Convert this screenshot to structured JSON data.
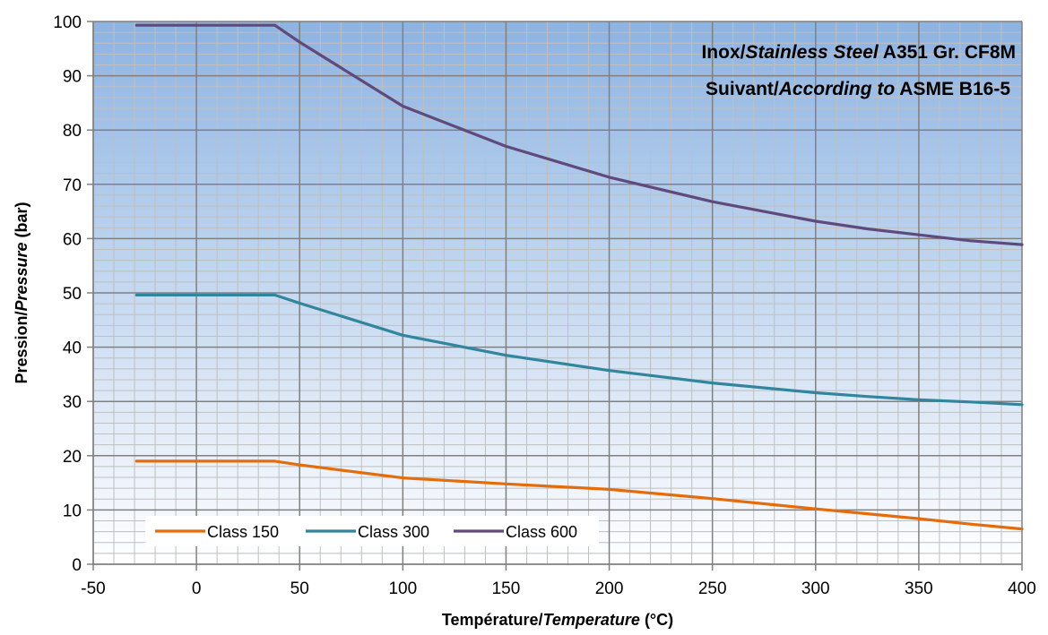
{
  "chart_data": {
    "type": "line",
    "title": {
      "line1": [
        {
          "text": "Inox/",
          "italic": false
        },
        {
          "text": "Stainless Steel",
          "italic": true
        },
        {
          "text": " A351 Gr. CF8M",
          "italic": false
        }
      ],
      "line2": [
        {
          "text": "Suivant/",
          "italic": false
        },
        {
          "text": "According to",
          "italic": true
        },
        {
          "text": " ASME B16-5",
          "italic": false
        }
      ]
    },
    "xlabel": [
      {
        "text": "Température/",
        "italic": false
      },
      {
        "text": "Temperature",
        "italic": true
      },
      {
        "text": " (°C)",
        "italic": false
      }
    ],
    "ylabel": [
      {
        "text": "Pression/",
        "italic": false
      },
      {
        "text": "Pressure",
        "italic": true
      },
      {
        "text": " (bar)",
        "italic": false
      }
    ],
    "xlim": [
      -50,
      400
    ],
    "ylim": [
      0,
      100
    ],
    "x_ticks": [
      "-50",
      "0",
      "50",
      "100",
      "150",
      "200",
      "250",
      "300",
      "350",
      "400"
    ],
    "y_ticks": [
      "0",
      "10",
      "20",
      "30",
      "40",
      "50",
      "60",
      "70",
      "80",
      "90",
      "100"
    ],
    "x_tick_values": [
      -50,
      0,
      50,
      100,
      150,
      200,
      250,
      300,
      350,
      400
    ],
    "y_tick_values": [
      0,
      10,
      20,
      30,
      40,
      50,
      60,
      70,
      80,
      90,
      100
    ],
    "x_minor_step": 10,
    "y_minor_step": 2,
    "grid": true,
    "legend_position": "bottom-left",
    "x": [
      -29,
      38,
      50,
      100,
      150,
      200,
      250,
      300,
      325,
      350,
      375,
      400
    ],
    "series": [
      {
        "name": "Class 150",
        "color": "#E46C0A",
        "values": [
          19.0,
          19.0,
          18.3,
          15.9,
          14.8,
          13.8,
          12.1,
          10.2,
          9.3,
          8.4,
          7.4,
          6.5
        ]
      },
      {
        "name": "Class 300",
        "color": "#31859C",
        "values": [
          49.6,
          49.6,
          48.1,
          42.2,
          38.5,
          35.7,
          33.4,
          31.6,
          30.9,
          30.3,
          29.9,
          29.4
        ]
      },
      {
        "name": "Class 600",
        "color": "#604A7B",
        "values": [
          99.3,
          99.3,
          96.2,
          84.4,
          77.0,
          71.3,
          66.8,
          63.2,
          61.8,
          60.7,
          59.6,
          58.9
        ]
      }
    ],
    "colors": {
      "background_top": "#8DB3E2",
      "background_bottom": "#FFFFFF",
      "major_grid": "#808080",
      "minor_grid": "#BFBFBF"
    }
  }
}
